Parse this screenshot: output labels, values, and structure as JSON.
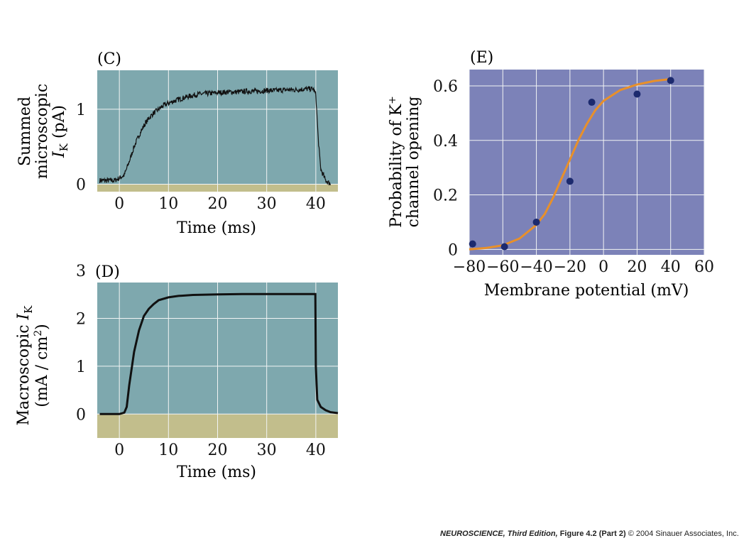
{
  "colors": {
    "teal_bg": "#7ea8ae",
    "tan_band": "#c2be8c",
    "blue_bg": "#7c82b8",
    "trace": "#111111",
    "fit_curve": "#e8902a",
    "points": "#1c2a6e",
    "grid": "#f2f4f4"
  },
  "footer": {
    "book": "NEUROSCIENCE,",
    "edition": "Third Edition,",
    "figure": "Figure 4.2 (Part 2)",
    "copyright": "© 2004 Sinauer Associates, Inc."
  },
  "chart_data": [
    {
      "panel": "(C)",
      "type": "line",
      "ylabel_lines": [
        "Summed",
        "microscopic",
        "I",
        "K",
        " (pA)"
      ],
      "xlabel": "Time (ms)",
      "xlim": [
        -4.5,
        44.5
      ],
      "ylim": [
        -0.1,
        1.52
      ],
      "xticks": [
        0,
        10,
        20,
        30,
        40
      ],
      "yticks": [
        0,
        1
      ],
      "baseline_band": [
        -0.1,
        0.0
      ],
      "grid": true,
      "series": [
        {
          "noisy": true,
          "x": [
            -4,
            -1,
            0,
            1,
            2,
            3,
            4,
            5,
            6,
            7,
            8,
            9,
            10,
            12,
            14,
            16,
            18,
            20,
            22,
            24,
            26,
            28,
            30,
            32,
            34,
            36,
            38,
            39.5,
            40,
            40.5,
            41,
            42,
            43
          ],
          "y": [
            0.05,
            0.05,
            0.08,
            0.12,
            0.3,
            0.5,
            0.65,
            0.78,
            0.88,
            0.95,
            1.0,
            1.05,
            1.08,
            1.13,
            1.17,
            1.2,
            1.21,
            1.22,
            1.23,
            1.23,
            1.24,
            1.24,
            1.25,
            1.25,
            1.26,
            1.26,
            1.27,
            1.27,
            1.2,
            0.6,
            0.2,
            0.05,
            0.0
          ]
        }
      ]
    },
    {
      "panel": "(D)",
      "type": "line",
      "ylabel_lines": [
        "Macroscopic ",
        "I",
        "K",
        "(mA / cm",
        "2",
        ")"
      ],
      "xlabel": "Time (ms)",
      "xlim": [
        -4.5,
        44.5
      ],
      "ylim": [
        -0.5,
        2.75
      ],
      "xticks": [
        0,
        10,
        20,
        30,
        40
      ],
      "yticks": [
        0,
        1,
        2,
        3
      ],
      "baseline_band": [
        -0.5,
        0.0
      ],
      "grid": true,
      "series": [
        {
          "noisy": false,
          "x": [
            -4,
            0,
            1,
            1.5,
            2,
            3,
            4,
            5,
            6,
            7,
            8,
            10,
            12,
            15,
            20,
            25,
            30,
            35,
            39.9,
            40,
            40.3,
            41,
            42,
            43,
            44.5
          ],
          "y": [
            0.0,
            0.0,
            0.03,
            0.15,
            0.6,
            1.3,
            1.75,
            2.05,
            2.2,
            2.3,
            2.38,
            2.44,
            2.47,
            2.49,
            2.5,
            2.51,
            2.51,
            2.51,
            2.51,
            1.0,
            0.3,
            0.15,
            0.08,
            0.04,
            0.02
          ]
        }
      ]
    },
    {
      "panel": "(E)",
      "type": "scatter",
      "ylabel_lines": [
        "Probability of K",
        "+",
        "channel opening"
      ],
      "xlabel": "Membrane potential (mV)",
      "xlim": [
        -80,
        60
      ],
      "ylim": [
        -0.02,
        0.66
      ],
      "xticks": [
        -80,
        -60,
        -40,
        -20,
        0,
        20,
        40,
        60
      ],
      "xtick_labels": [
        "−80",
        "−60",
        "−40",
        "−20",
        "0",
        "20",
        "40",
        "60"
      ],
      "yticks": [
        0,
        0.2,
        0.4,
        0.6
      ],
      "ytick_labels": [
        "0",
        "0.2",
        "0.4",
        "0.6"
      ],
      "grid": true,
      "points": [
        {
          "x": -78,
          "y": 0.02
        },
        {
          "x": -59,
          "y": 0.01
        },
        {
          "x": -40,
          "y": 0.1
        },
        {
          "x": -20,
          "y": 0.25
        },
        {
          "x": -7,
          "y": 0.54
        },
        {
          "x": 20,
          "y": 0.57
        },
        {
          "x": 40,
          "y": 0.62
        }
      ],
      "fit": {
        "type": "boltzmann",
        "x": [
          -80,
          -70,
          -60,
          -50,
          -40,
          -35,
          -30,
          -25,
          -20,
          -15,
          -10,
          -5,
          0,
          10,
          20,
          30,
          40
        ],
        "y": [
          0.0,
          0.005,
          0.015,
          0.04,
          0.09,
          0.13,
          0.19,
          0.26,
          0.33,
          0.4,
          0.46,
          0.51,
          0.545,
          0.585,
          0.605,
          0.618,
          0.625
        ]
      }
    }
  ]
}
